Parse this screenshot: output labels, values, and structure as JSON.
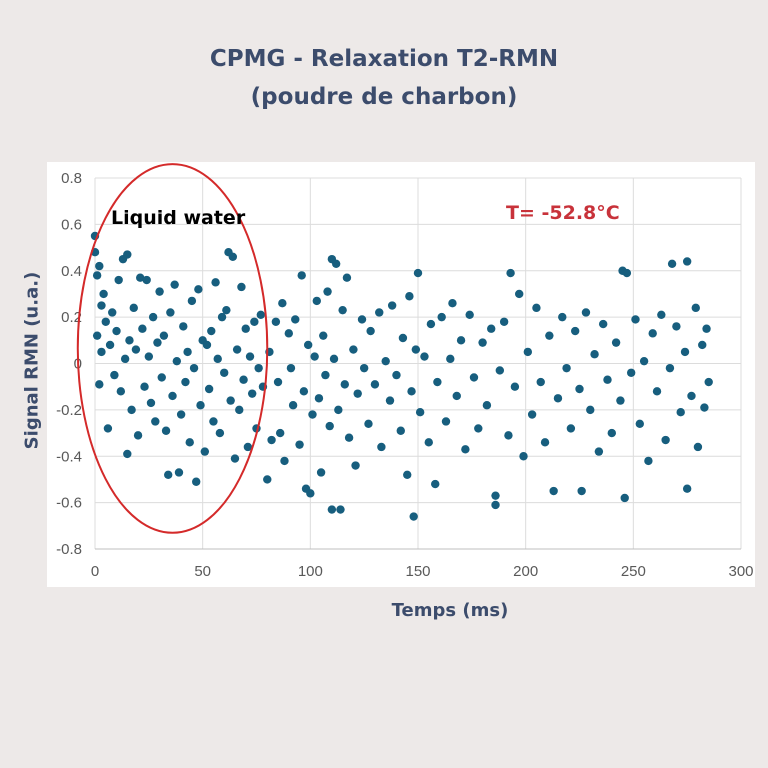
{
  "chart_data": {
    "type": "scatter",
    "title": "CPMG - Relaxation T2-RMN",
    "subtitle": "(poudre de charbon)",
    "xlabel": "Temps (ms)",
    "ylabel": "Signal RMN (u.a.)",
    "xlim": [
      0,
      300
    ],
    "ylim": [
      -0.8,
      0.8
    ],
    "xticks": [
      "0",
      "50",
      "100",
      "150",
      "200",
      "250",
      "300"
    ],
    "yticks": [
      "0.8",
      "0.6",
      "0.4",
      "0.2",
      "0",
      "-0.2",
      "-0.4",
      "-0.6",
      "-0.8"
    ],
    "grid": true,
    "marker_color": "#175e7e",
    "annotations": [
      {
        "text": "Liquid water",
        "color": "#000000",
        "shape": "ellipse",
        "shape_color": "#d42a2a",
        "x_range": [
          -8,
          80
        ],
        "y_range": [
          -0.73,
          0.86
        ]
      },
      {
        "text": "T= -52.8°C",
        "color": "#c8323a"
      }
    ],
    "points": [
      [
        0,
        0.55
      ],
      [
        0,
        0.48
      ],
      [
        1,
        0.38
      ],
      [
        2,
        0.42
      ],
      [
        3,
        0.25
      ],
      [
        1,
        0.12
      ],
      [
        2,
        -0.09
      ],
      [
        3,
        0.05
      ],
      [
        4,
        0.3
      ],
      [
        5,
        0.18
      ],
      [
        6,
        -0.28
      ],
      [
        7,
        0.08
      ],
      [
        8,
        0.22
      ],
      [
        9,
        -0.05
      ],
      [
        10,
        0.14
      ],
      [
        11,
        0.36
      ],
      [
        12,
        -0.12
      ],
      [
        13,
        0.45
      ],
      [
        14,
        0.02
      ],
      [
        15,
        0.47
      ],
      [
        15,
        -0.39
      ],
      [
        16,
        0.1
      ],
      [
        17,
        -0.2
      ],
      [
        18,
        0.24
      ],
      [
        19,
        0.06
      ],
      [
        20,
        -0.31
      ],
      [
        21,
        0.37
      ],
      [
        22,
        0.15
      ],
      [
        23,
        -0.1
      ],
      [
        24,
        0.36
      ],
      [
        25,
        0.03
      ],
      [
        26,
        -0.17
      ],
      [
        27,
        0.2
      ],
      [
        28,
        -0.25
      ],
      [
        29,
        0.09
      ],
      [
        30,
        0.31
      ],
      [
        31,
        -0.06
      ],
      [
        32,
        0.12
      ],
      [
        33,
        -0.29
      ],
      [
        34,
        -0.48
      ],
      [
        35,
        0.22
      ],
      [
        36,
        -0.14
      ],
      [
        37,
        0.34
      ],
      [
        38,
        0.01
      ],
      [
        39,
        -0.47
      ],
      [
        40,
        -0.22
      ],
      [
        41,
        0.16
      ],
      [
        42,
        -0.08
      ],
      [
        43,
        0.05
      ],
      [
        44,
        -0.34
      ],
      [
        45,
        0.27
      ],
      [
        46,
        -0.02
      ],
      [
        47,
        -0.51
      ],
      [
        48,
        0.32
      ],
      [
        49,
        -0.18
      ],
      [
        50,
        0.1
      ],
      [
        51,
        -0.38
      ],
      [
        52,
        0.08
      ],
      [
        53,
        -0.11
      ],
      [
        54,
        0.14
      ],
      [
        55,
        -0.25
      ],
      [
        56,
        0.35
      ],
      [
        57,
        0.02
      ],
      [
        58,
        -0.3
      ],
      [
        59,
        0.2
      ],
      [
        60,
        -0.04
      ],
      [
        61,
        0.23
      ],
      [
        62,
        0.48
      ],
      [
        63,
        -0.16
      ],
      [
        64,
        0.46
      ],
      [
        65,
        -0.41
      ],
      [
        66,
        0.06
      ],
      [
        67,
        -0.2
      ],
      [
        68,
        0.33
      ],
      [
        69,
        -0.07
      ],
      [
        70,
        0.15
      ],
      [
        71,
        -0.36
      ],
      [
        72,
        0.03
      ],
      [
        73,
        -0.13
      ],
      [
        74,
        0.18
      ],
      [
        75,
        -0.28
      ],
      [
        76,
        -0.02
      ],
      [
        77,
        0.21
      ],
      [
        78,
        -0.1
      ],
      [
        80,
        -0.5
      ],
      [
        81,
        0.05
      ],
      [
        82,
        -0.33
      ],
      [
        84,
        0.18
      ],
      [
        85,
        -0.08
      ],
      [
        86,
        -0.3
      ],
      [
        87,
        0.26
      ],
      [
        88,
        -0.42
      ],
      [
        90,
        0.13
      ],
      [
        91,
        -0.02
      ],
      [
        92,
        -0.18
      ],
      [
        93,
        0.19
      ],
      [
        95,
        -0.35
      ],
      [
        96,
        0.38
      ],
      [
        97,
        -0.12
      ],
      [
        98,
        -0.54
      ],
      [
        99,
        0.08
      ],
      [
        100,
        -0.56
      ],
      [
        101,
        -0.22
      ],
      [
        102,
        0.03
      ],
      [
        103,
        0.27
      ],
      [
        104,
        -0.15
      ],
      [
        105,
        -0.47
      ],
      [
        106,
        0.12
      ],
      [
        107,
        -0.05
      ],
      [
        108,
        0.31
      ],
      [
        109,
        -0.27
      ],
      [
        110,
        0.45
      ],
      [
        110,
        -0.63
      ],
      [
        111,
        0.02
      ],
      [
        112,
        0.43
      ],
      [
        113,
        -0.2
      ],
      [
        114,
        -0.63
      ],
      [
        115,
        0.23
      ],
      [
        116,
        -0.09
      ],
      [
        117,
        0.37
      ],
      [
        118,
        -0.32
      ],
      [
        120,
        0.06
      ],
      [
        121,
        -0.44
      ],
      [
        122,
        -0.13
      ],
      [
        124,
        0.19
      ],
      [
        125,
        -0.02
      ],
      [
        127,
        -0.26
      ],
      [
        128,
        0.14
      ],
      [
        130,
        -0.09
      ],
      [
        132,
        0.22
      ],
      [
        133,
        -0.36
      ],
      [
        135,
        0.01
      ],
      [
        137,
        -0.16
      ],
      [
        138,
        0.25
      ],
      [
        140,
        -0.05
      ],
      [
        142,
        -0.29
      ],
      [
        143,
        0.11
      ],
      [
        145,
        -0.48
      ],
      [
        146,
        0.29
      ],
      [
        147,
        -0.12
      ],
      [
        148,
        -0.66
      ],
      [
        149,
        0.06
      ],
      [
        150,
        0.39
      ],
      [
        151,
        -0.21
      ],
      [
        153,
        0.03
      ],
      [
        155,
        -0.34
      ],
      [
        156,
        0.17
      ],
      [
        158,
        -0.52
      ],
      [
        159,
        -0.08
      ],
      [
        161,
        0.2
      ],
      [
        163,
        -0.25
      ],
      [
        165,
        0.02
      ],
      [
        166,
        0.26
      ],
      [
        168,
        -0.14
      ],
      [
        170,
        0.1
      ],
      [
        172,
        -0.37
      ],
      [
        174,
        0.21
      ],
      [
        176,
        -0.06
      ],
      [
        178,
        -0.28
      ],
      [
        180,
        0.09
      ],
      [
        182,
        -0.18
      ],
      [
        184,
        0.15
      ],
      [
        186,
        -0.61
      ],
      [
        186,
        -0.57
      ],
      [
        188,
        -0.03
      ],
      [
        190,
        0.18
      ],
      [
        192,
        -0.31
      ],
      [
        193,
        0.39
      ],
      [
        195,
        -0.1
      ],
      [
        197,
        0.3
      ],
      [
        199,
        -0.4
      ],
      [
        201,
        0.05
      ],
      [
        203,
        -0.22
      ],
      [
        205,
        0.24
      ],
      [
        207,
        -0.08
      ],
      [
        209,
        -0.34
      ],
      [
        211,
        0.12
      ],
      [
        213,
        -0.55
      ],
      [
        215,
        -0.15
      ],
      [
        217,
        0.2
      ],
      [
        219,
        -0.02
      ],
      [
        221,
        -0.28
      ],
      [
        223,
        0.14
      ],
      [
        225,
        -0.11
      ],
      [
        226,
        -0.55
      ],
      [
        228,
        0.22
      ],
      [
        230,
        -0.2
      ],
      [
        232,
        0.04
      ],
      [
        234,
        -0.38
      ],
      [
        236,
        0.17
      ],
      [
        238,
        -0.07
      ],
      [
        240,
        -0.3
      ],
      [
        242,
        0.09
      ],
      [
        244,
        -0.16
      ],
      [
        245,
        0.4
      ],
      [
        246,
        -0.58
      ],
      [
        247,
        0.39
      ],
      [
        249,
        -0.04
      ],
      [
        251,
        0.19
      ],
      [
        253,
        -0.26
      ],
      [
        255,
        0.01
      ],
      [
        257,
        -0.42
      ],
      [
        259,
        0.13
      ],
      [
        261,
        -0.12
      ],
      [
        263,
        0.21
      ],
      [
        265,
        -0.33
      ],
      [
        267,
        -0.02
      ],
      [
        268,
        0.43
      ],
      [
        270,
        0.16
      ],
      [
        272,
        -0.21
      ],
      [
        274,
        0.05
      ],
      [
        275,
        0.44
      ],
      [
        275,
        -0.54
      ],
      [
        277,
        -0.14
      ],
      [
        279,
        0.24
      ],
      [
        280,
        -0.36
      ],
      [
        282,
        0.08
      ],
      [
        283,
        -0.19
      ],
      [
        284,
        0.15
      ],
      [
        285,
        -0.08
      ]
    ]
  }
}
